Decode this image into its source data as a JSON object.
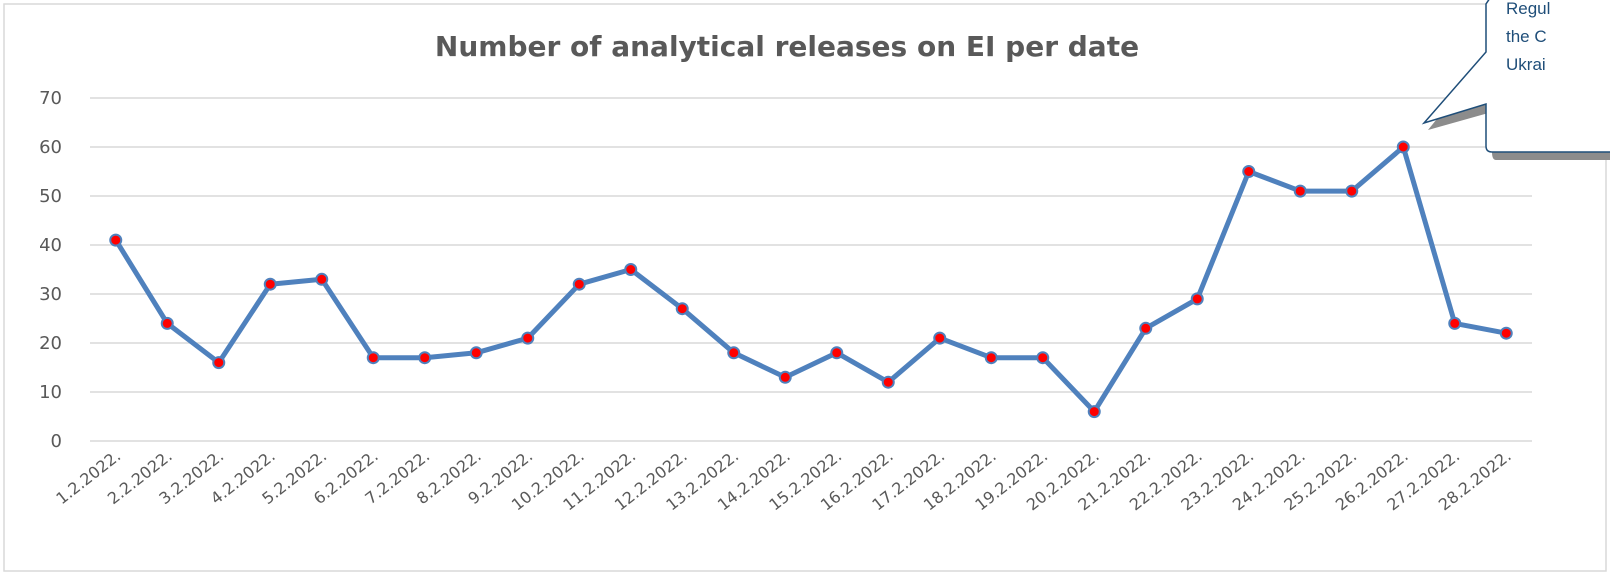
{
  "chart_data": {
    "type": "line",
    "title": "Number of analytical releases on EI per date",
    "xlabel": "",
    "ylabel": "",
    "ylim": [
      0,
      70
    ],
    "yticks": [
      "0",
      "10",
      "20",
      "30",
      "40",
      "50",
      "60",
      "70"
    ],
    "grid": true,
    "categories": [
      "1.2.2022.",
      "2.2.2022.",
      "3.2.2022.",
      "4.2.2022.",
      "5.2.2022.",
      "6.2.2022.",
      "7.2.2022.",
      "8.2.2022.",
      "9.2.2022.",
      "10.2.2022.",
      "11.2.2022.",
      "12.2.2022.",
      "13.2.2022.",
      "14.2.2022.",
      "15.2.2022.",
      "16.2.2022.",
      "17.2.2022.",
      "18.2.2022.",
      "19.2.2022.",
      "20.2.2022.",
      "21.2.2022.",
      "22.2.2022.",
      "23.2.2022.",
      "24.2.2022.",
      "25.2.2022.",
      "26.2.2022.",
      "27.2.2022.",
      "28.2.2022."
    ],
    "series": [
      {
        "values": [
          41,
          24,
          16,
          32,
          33,
          17,
          17,
          18,
          21,
          32,
          35,
          27,
          18,
          13,
          18,
          12,
          21,
          17,
          17,
          6,
          23,
          29,
          55,
          51,
          51,
          60,
          24,
          22
        ]
      }
    ],
    "colors": {
      "line": "#4f81bd",
      "marker": "#ff0000",
      "grid": "#d9d9d9",
      "text": "#595959",
      "callout_border": "#1f4e79",
      "callout_shadow": "#8c8c8c"
    },
    "annotation": {
      "lines": [
        "Regul",
        "the C",
        "Ukrai"
      ],
      "points_to_category": "26.2.2022."
    }
  }
}
